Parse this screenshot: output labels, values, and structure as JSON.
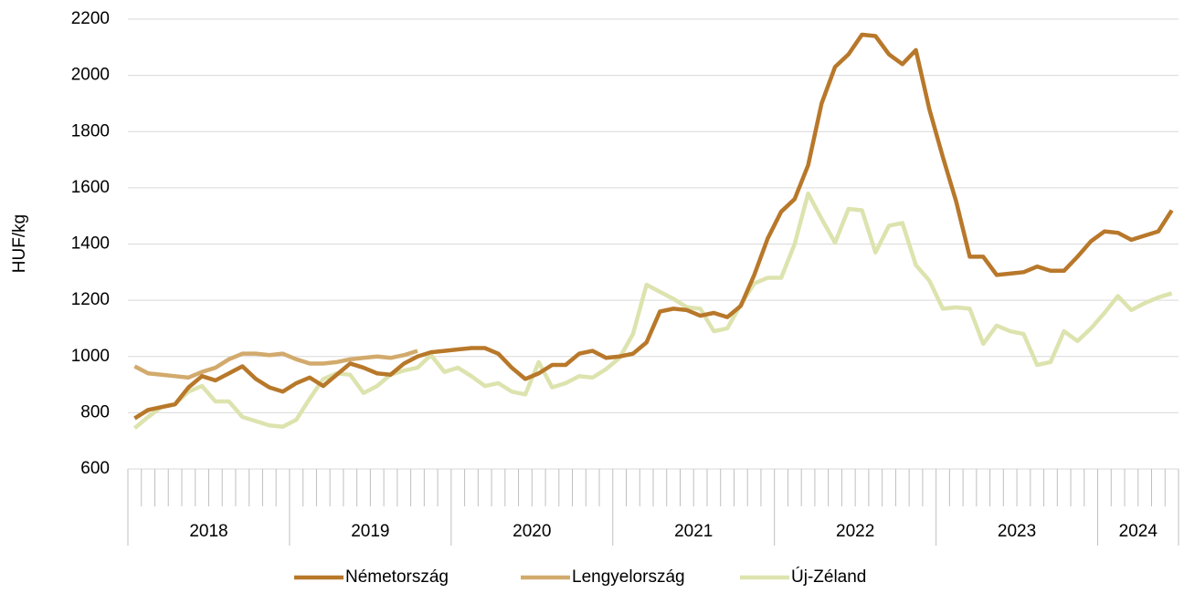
{
  "chart_data": {
    "type": "line",
    "y_label": "HUF/kg",
    "categories": [
      "2018",
      null,
      null,
      null,
      null,
      null,
      null,
      null,
      null,
      null,
      null,
      null,
      "2019",
      null,
      null,
      null,
      null,
      null,
      null,
      null,
      null,
      null,
      null,
      null,
      "2020",
      null,
      null,
      null,
      null,
      null,
      null,
      null,
      null,
      null,
      null,
      null,
      "2021",
      null,
      null,
      null,
      null,
      null,
      null,
      null,
      null,
      null,
      null,
      null,
      "2022",
      null,
      null,
      null,
      null,
      null,
      null,
      null,
      null,
      null,
      null,
      null,
      "2023",
      null,
      null,
      null,
      null,
      null,
      null,
      null,
      null,
      null,
      null,
      null,
      "2024",
      null,
      null,
      null,
      null,
      null
    ],
    "series": [
      {
        "name": "Németország",
        "color": "#b8782a",
        "values": [
          780,
          810,
          820,
          830,
          890,
          930,
          915,
          940,
          965,
          920,
          890,
          875,
          905,
          925,
          895,
          935,
          975,
          960,
          940,
          935,
          975,
          1000,
          1015,
          1020,
          1025,
          1030,
          1030,
          1010,
          960,
          920,
          940,
          970,
          970,
          1010,
          1020,
          995,
          1000,
          1010,
          1050,
          1160,
          1170,
          1165,
          1145,
          1155,
          1140,
          1180,
          1290,
          1420,
          1515,
          1560,
          1680,
          1900,
          2030,
          2075,
          2145,
          2140,
          2075,
          2040,
          2090,
          1880,
          1710,
          1550,
          1355,
          1355,
          1290,
          1295,
          1300,
          1320,
          1305,
          1305,
          1355,
          1410,
          1445,
          1440,
          1415,
          1430,
          1445,
          1520
        ]
      },
      {
        "name": "Lengyelország",
        "color": "#d2aa6c",
        "values": [
          965,
          940,
          935,
          930,
          925,
          945,
          960,
          990,
          1010,
          1010,
          1005,
          1010,
          990,
          975,
          975,
          980,
          990,
          995,
          1000,
          995,
          1005,
          1020,
          null,
          null,
          null,
          null,
          null,
          null,
          null,
          null,
          null,
          null,
          null,
          null,
          null,
          null,
          null,
          null,
          null,
          null,
          null,
          null,
          null,
          null,
          null,
          null,
          null,
          null,
          null,
          null,
          null,
          null,
          null,
          null,
          null,
          null,
          null,
          null,
          null,
          null,
          null,
          null,
          null,
          null,
          null,
          null,
          null,
          null,
          null,
          null,
          null,
          null,
          null,
          null,
          null,
          null,
          null,
          null
        ]
      },
      {
        "name": "Új-Zéland",
        "color": "#dde3ae",
        "values": [
          745,
          785,
          820,
          830,
          875,
          895,
          840,
          840,
          785,
          770,
          755,
          750,
          775,
          850,
          920,
          940,
          935,
          870,
          895,
          935,
          950,
          960,
          1005,
          945,
          960,
          930,
          895,
          905,
          875,
          865,
          980,
          890,
          905,
          930,
          925,
          955,
          995,
          1080,
          1255,
          1230,
          1205,
          1175,
          1170,
          1090,
          1100,
          1185,
          1260,
          1280,
          1280,
          1400,
          1580,
          1490,
          1405,
          1525,
          1520,
          1370,
          1465,
          1475,
          1325,
          1270,
          1170,
          1175,
          1170,
          1045,
          1110,
          1090,
          1080,
          970,
          980,
          1090,
          1055,
          1100,
          1155,
          1215,
          1165,
          1190,
          1210,
          1225
        ]
      }
    ],
    "ylim": [
      600,
      2200
    ],
    "yticks": [
      600,
      800,
      1000,
      1200,
      1400,
      1600,
      1800,
      2000,
      2200
    ],
    "grid": true,
    "legend": "bottom"
  }
}
